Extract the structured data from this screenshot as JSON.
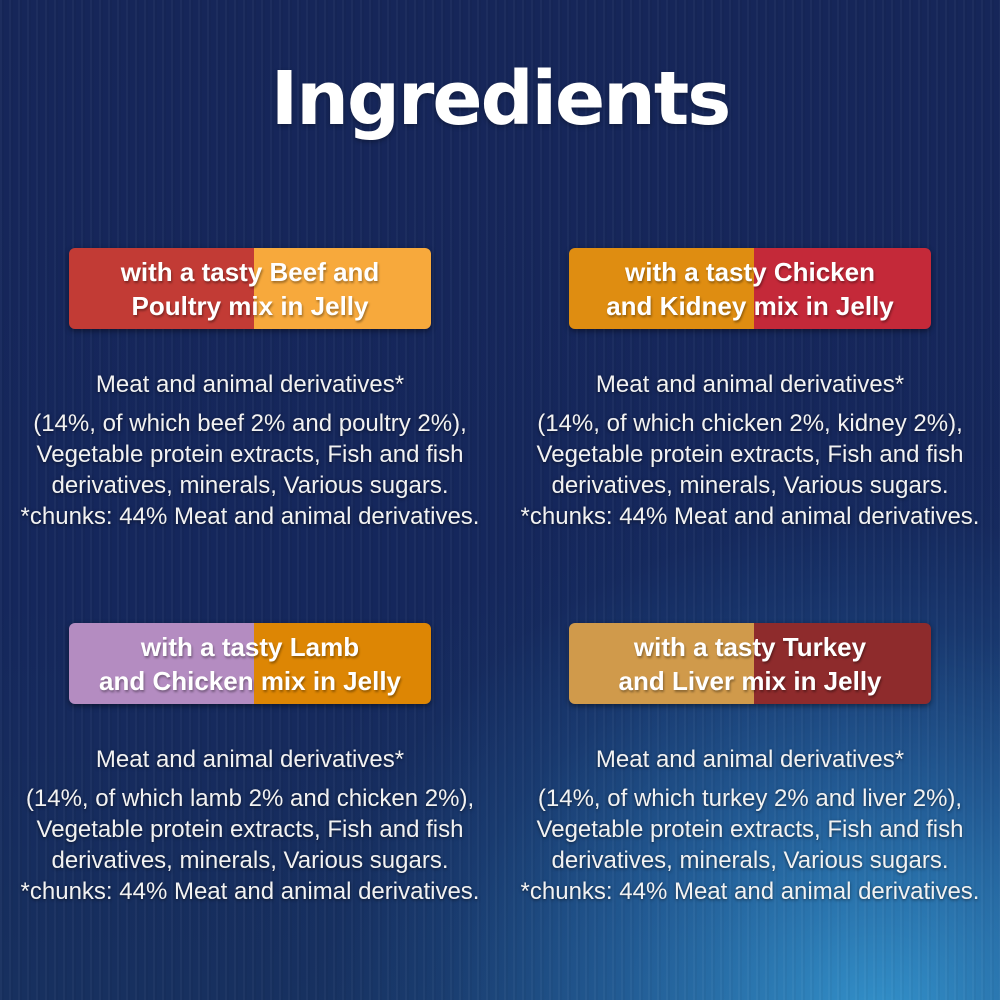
{
  "title": "Ingredients",
  "panels": [
    {
      "variant": "beef-and-poultry",
      "banner": {
        "line1": "with a tasty Beef and",
        "line2": "Poultry mix in Jelly",
        "left_color": "#c23b35",
        "right_color": "#f7a93c"
      },
      "ingredients_lines": [
        "Meat and animal derivatives*",
        "(14%, of which beef 2% and poultry 2%),",
        "Vegetable protein extracts, Fish and fish",
        "derivatives, minerals, Various sugars.",
        "*chunks: 44% Meat and animal derivatives."
      ]
    },
    {
      "variant": "chicken-and-kidney",
      "banner": {
        "line1": "with a tasty Chicken",
        "line2": "and Kidney mix in Jelly",
        "left_color": "#df8d11",
        "right_color": "#c42939"
      },
      "ingredients_lines": [
        "Meat and animal derivatives*",
        "(14%, of which chicken 2%, kidney 2%),",
        "Vegetable protein extracts, Fish and fish",
        "derivatives, minerals, Various sugars.",
        "*chunks: 44% Meat and animal derivatives."
      ]
    },
    {
      "variant": "lamb-and-chicken",
      "banner": {
        "line1": "with a tasty Lamb",
        "line2": "and Chicken mix in Jelly",
        "left_color": "#b48cc1",
        "right_color": "#dd8604"
      },
      "ingredients_lines": [
        "Meat and animal derivatives*",
        "(14%, of which lamb 2% and chicken 2%),",
        "Vegetable protein extracts, Fish and fish",
        "derivatives, minerals, Various sugars.",
        "*chunks: 44% Meat and animal derivatives."
      ]
    },
    {
      "variant": "turkey-and-liver",
      "banner": {
        "line1": "with a tasty Turkey",
        "line2": "and Liver mix in Jelly",
        "left_color": "#d09a4b",
        "right_color": "#8e2b2c"
      },
      "ingredients_lines": [
        "Meat and animal derivatives*",
        "(14%, of which turkey 2% and liver 2%),",
        "Vegetable protein extracts, Fish and fish",
        "derivatives, minerals, Various sugars.",
        "*chunks: 44% Meat and animal derivatives."
      ]
    }
  ]
}
